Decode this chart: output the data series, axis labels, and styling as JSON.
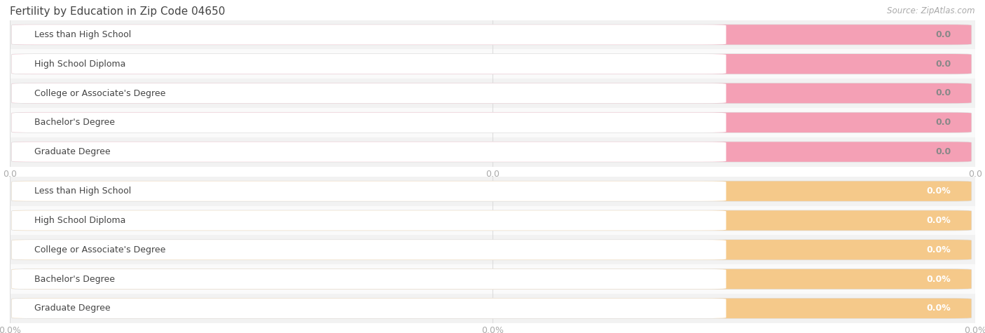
{
  "title": "Fertility by Education in Zip Code 04650",
  "source": "Source: ZipAtlas.com",
  "categories": [
    "Less than High School",
    "High School Diploma",
    "College or Associate's Degree",
    "Bachelor's Degree",
    "Graduate Degree"
  ],
  "values_top": [
    0.0,
    0.0,
    0.0,
    0.0,
    0.0
  ],
  "values_bottom": [
    0.0,
    0.0,
    0.0,
    0.0,
    0.0
  ],
  "bar_color_top": "#f4a0b5",
  "bar_color_bottom": "#f5c98a",
  "bar_bg_color": "#e8e8e8",
  "row_bg_even": "#f2f2f2",
  "row_bg_odd": "#fafafa",
  "title_color": "#444444",
  "source_color": "#aaaaaa",
  "label_text_color": "#444444",
  "value_text_color_top": "#888888",
  "value_text_color_bottom": "#ffffff",
  "tick_label_color": "#aaaaaa",
  "grid_color": "#dddddd",
  "x_tick_labels_top": [
    "0.0",
    "0.0",
    "0.0"
  ],
  "x_tick_labels_bottom": [
    "0.0%",
    "0.0%",
    "0.0%"
  ],
  "figsize": [
    14.06,
    4.75
  ],
  "dpi": 100
}
